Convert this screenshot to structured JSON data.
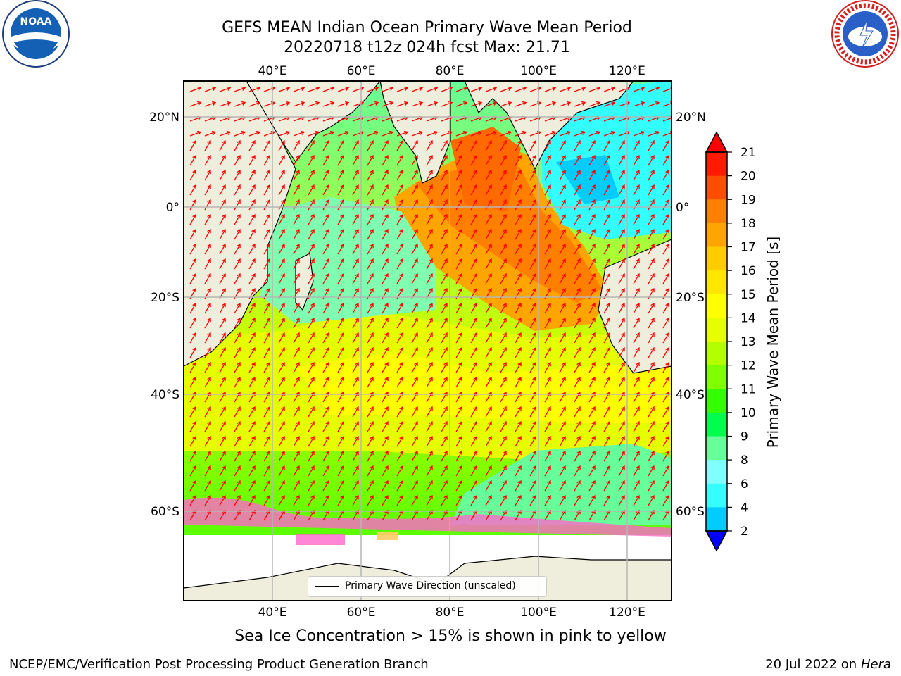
{
  "header": {
    "title": "GEFS MEAN Indian Ocean Primary Wave Mean Period",
    "subtitle": "20220718 t12z 024h fcst   Max: 21.71"
  },
  "logos": {
    "left_name": "noaa-logo",
    "left_text": "NOAA",
    "right_name": "nws-logo",
    "right_text": "NATIONAL WEATHER SERVICE"
  },
  "map": {
    "lon_ticks_top": [
      "40°E",
      "60°E",
      "80°E",
      "100°E",
      "120°E"
    ],
    "lon_ticks_bottom": [
      "40°E",
      "60°E",
      "80°E",
      "100°E",
      "120°E"
    ],
    "lat_ticks_left": [
      "20°N",
      "0°",
      "20°S",
      "40°S",
      "60°S"
    ],
    "lat_ticks_right": [
      "20°N",
      "0°",
      "20°S",
      "40°S",
      "60°S"
    ],
    "legend_label": "Primary Wave Direction (unscaled)",
    "land_color": "#efeedc",
    "arrow_color": "#ff0000",
    "grid": true
  },
  "colorbar": {
    "label": "Primary Wave Mean Period [s]",
    "ticks": [
      "21",
      "20",
      "19",
      "18",
      "17",
      "16",
      "15",
      "14",
      "13",
      "12",
      "11",
      "10",
      "9",
      "8",
      "6",
      "4",
      "2"
    ],
    "colors": [
      "#ff1a00",
      "#ff4d00",
      "#ff8000",
      "#ffa500",
      "#ffcc00",
      "#ffe600",
      "#ffff00",
      "#e6ff00",
      "#b3ff00",
      "#80ff00",
      "#33ff00",
      "#00ff4d",
      "#66ff99",
      "#80ffff",
      "#33ffff",
      "#00ccff",
      "#0066ff"
    ],
    "under_color": "#0000ff",
    "over_color": "#ff0000"
  },
  "footer": {
    "sea_ice_note": "Sea Ice Concentration > 15% is shown in pink to yellow",
    "credit": "NCEP/EMC/Verification Post Processing Product Generation Branch",
    "date": "20 Jul 2022 on",
    "machine": "Hera"
  }
}
